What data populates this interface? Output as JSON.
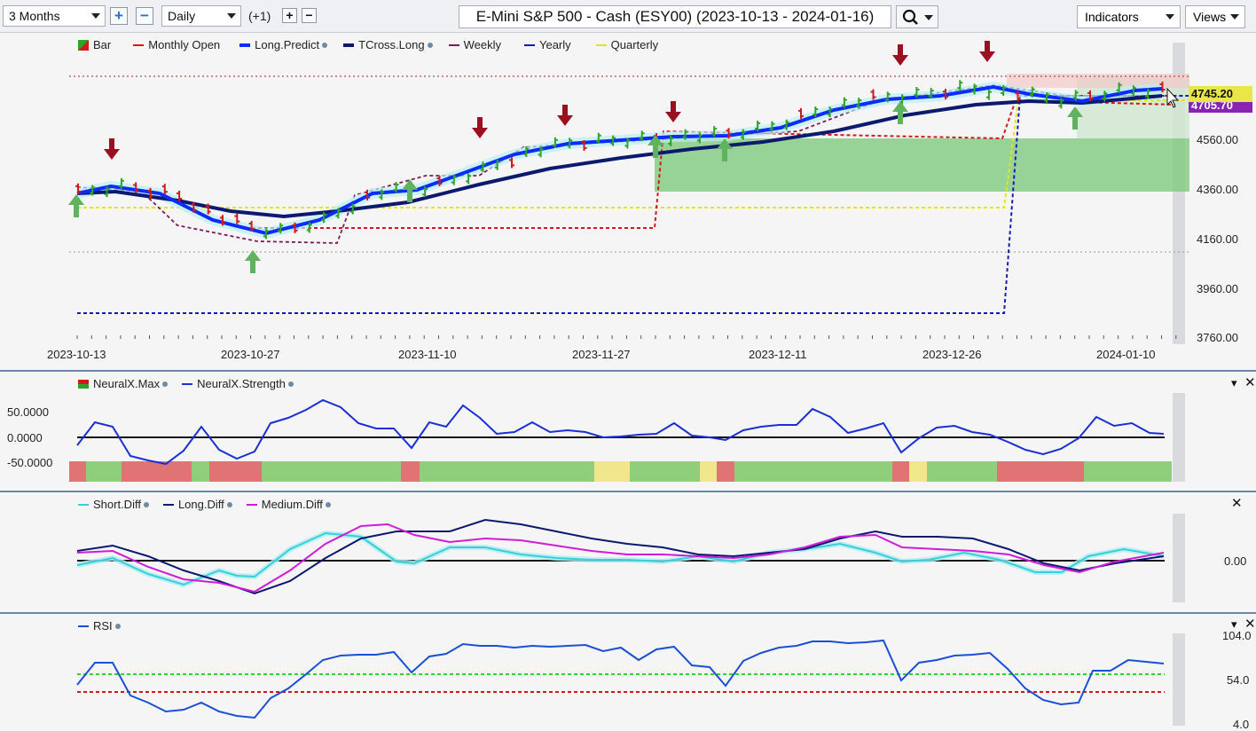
{
  "toolbar": {
    "range": "3 Months",
    "interval": "Daily",
    "offset": "(+1)",
    "title": "E-Mini S&P 500 - Cash (ESY00) (2023-10-13 - 2024-01-16)",
    "indicators_label": "Indicators",
    "views_label": "Views"
  },
  "main_legend": [
    "Bar",
    "Monthly Open",
    "Long.Predict",
    "TCross.Long",
    "Weekly",
    "Yearly",
    "Quarterly"
  ],
  "price_axis": [
    "4560.00",
    "4360.00",
    "4160.00",
    "3960.00",
    "3760.00"
  ],
  "price_tags": {
    "last": "4745.20",
    "predict": "4705.70"
  },
  "date_axis": [
    "2023-10-13",
    "2023-10-27",
    "2023-11-10",
    "2023-11-27",
    "2023-12-11",
    "2023-12-26",
    "2024-01-10"
  ],
  "neural_legend": [
    "NeuralX.Max",
    "NeuralX.Strength"
  ],
  "neural_axis": [
    "50.0000",
    "0.0000",
    "-50.0000"
  ],
  "diff_legend": [
    "Short.Diff",
    "Long.Diff",
    "Medium.Diff"
  ],
  "diff_axis": [
    "0.00"
  ],
  "rsi_legend": [
    "RSI"
  ],
  "rsi_axis": [
    "104.0",
    "54.0",
    "4.0"
  ],
  "colors": {
    "long_predict": "#0b2bff",
    "tcross": "#0b1a6e",
    "monthly": "#d11a1a",
    "weekly": "#7a1e5a",
    "yearly": "#1a1ab8",
    "quarterly": "#e4e41a",
    "short_diff": "#38cfd6",
    "medium_diff": "#d21bd6",
    "rsi": "#1a4fd6"
  }
}
